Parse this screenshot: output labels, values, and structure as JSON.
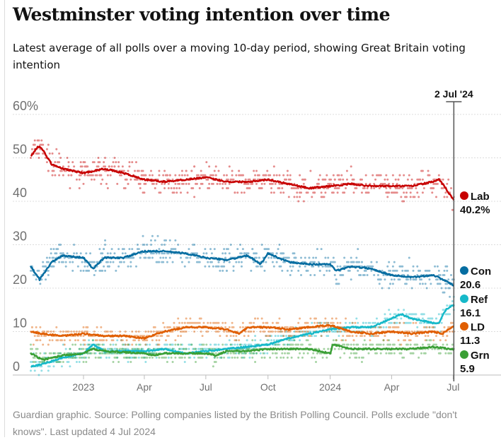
{
  "title": "Westminster voting intention over time",
  "subtitle": "Latest average of all polls over a moving 10-day period, showing Great Britain voting intention",
  "footer": "Guardian graphic. Source: Polling companies listed by the British Polling Council. Polls exclude \"don't knows\". Last updated 4 Jul 2024",
  "chart_data": {
    "type": "line",
    "ylim": [
      0,
      60
    ],
    "yticks": [
      {
        "v": 60,
        "label": "60%"
      },
      {
        "v": 50,
        "label": "50"
      },
      {
        "v": 40,
        "label": "40"
      },
      {
        "v": 30,
        "label": "30"
      },
      {
        "v": 20,
        "label": "20"
      },
      {
        "v": 10,
        "label": "10"
      },
      {
        "v": 0,
        "label": "0"
      }
    ],
    "xlim": [
      "2022-10-14",
      "2024-07-20"
    ],
    "xticks": [
      {
        "d": "2023-01-01",
        "label": "2023"
      },
      {
        "d": "2023-04-01",
        "label": "Apr"
      },
      {
        "d": "2023-07-01",
        "label": "Jul"
      },
      {
        "d": "2023-10-01",
        "label": "Oct"
      },
      {
        "d": "2024-01-01",
        "label": "2024"
      },
      {
        "d": "2024-04-01",
        "label": "Apr"
      },
      {
        "d": "2024-07-01",
        "label": "Jul"
      }
    ],
    "marker": {
      "date": "2024-07-02",
      "label": "2 Jul '24"
    },
    "grid": true,
    "series": [
      {
        "name": "Lab",
        "value_label": "40.2%",
        "color": "#c70000",
        "points": [
          [
            "2022-10-15",
            50.4
          ],
          [
            "2022-10-26",
            52.7
          ],
          [
            "2022-11-01",
            52
          ],
          [
            "2022-11-15",
            48.5
          ],
          [
            "2022-12-01",
            47.5
          ],
          [
            "2023-01-01",
            46.5
          ],
          [
            "2023-02-01",
            47.5
          ],
          [
            "2023-03-01",
            46.5
          ],
          [
            "2023-04-01",
            45
          ],
          [
            "2023-05-01",
            44.5
          ],
          [
            "2023-06-01",
            45
          ],
          [
            "2023-07-01",
            45.5
          ],
          [
            "2023-08-01",
            44.5
          ],
          [
            "2023-09-01",
            44.5
          ],
          [
            "2023-10-01",
            45
          ],
          [
            "2023-11-01",
            44
          ],
          [
            "2023-12-01",
            43
          ],
          [
            "2024-01-01",
            43.5
          ],
          [
            "2024-02-01",
            44
          ],
          [
            "2024-03-01",
            43.5
          ],
          [
            "2024-04-01",
            43.5
          ],
          [
            "2024-05-01",
            43.5
          ],
          [
            "2024-06-01",
            44.5
          ],
          [
            "2024-06-10",
            45
          ],
          [
            "2024-06-20",
            43
          ],
          [
            "2024-07-02",
            40.2
          ]
        ]
      },
      {
        "name": "Con",
        "value_label": "20.6",
        "color": "#056da1",
        "points": [
          [
            "2022-10-15",
            25
          ],
          [
            "2022-10-28",
            22
          ],
          [
            "2022-11-15",
            26
          ],
          [
            "2022-12-01",
            27.5
          ],
          [
            "2023-01-01",
            27
          ],
          [
            "2023-01-15",
            24.5
          ],
          [
            "2023-02-01",
            27
          ],
          [
            "2023-03-01",
            27
          ],
          [
            "2023-04-01",
            28.5
          ],
          [
            "2023-05-01",
            28.5
          ],
          [
            "2023-06-01",
            28
          ],
          [
            "2023-07-01",
            27
          ],
          [
            "2023-08-01",
            26.5
          ],
          [
            "2023-09-01",
            27.5
          ],
          [
            "2023-09-20",
            25.5
          ],
          [
            "2023-10-01",
            28
          ],
          [
            "2023-11-01",
            26
          ],
          [
            "2023-12-01",
            25.5
          ],
          [
            "2024-01-01",
            25.5
          ],
          [
            "2024-01-10",
            24
          ],
          [
            "2024-02-01",
            25
          ],
          [
            "2024-03-01",
            24.5
          ],
          [
            "2024-04-01",
            23
          ],
          [
            "2024-05-01",
            22.5
          ],
          [
            "2024-06-01",
            23
          ],
          [
            "2024-06-10",
            22.5
          ],
          [
            "2024-07-02",
            20.6
          ]
        ]
      },
      {
        "name": "Ref",
        "value_label": "16.1",
        "color": "#16b9c9",
        "points": [
          [
            "2022-10-15",
            2
          ],
          [
            "2022-11-01",
            2.5
          ],
          [
            "2022-12-01",
            4
          ],
          [
            "2023-01-01",
            5
          ],
          [
            "2023-01-15",
            7
          ],
          [
            "2023-02-01",
            5.5
          ],
          [
            "2023-04-01",
            5.5
          ],
          [
            "2023-05-01",
            6
          ],
          [
            "2023-06-01",
            5
          ],
          [
            "2023-07-01",
            5.5
          ],
          [
            "2023-08-01",
            6
          ],
          [
            "2023-09-01",
            6.5
          ],
          [
            "2023-10-01",
            7
          ],
          [
            "2023-11-01",
            8.5
          ],
          [
            "2023-12-01",
            9.5
          ],
          [
            "2024-01-01",
            10.5
          ],
          [
            "2024-02-01",
            11
          ],
          [
            "2024-03-01",
            11
          ],
          [
            "2024-04-01",
            13
          ],
          [
            "2024-04-15",
            14
          ],
          [
            "2024-05-01",
            13
          ],
          [
            "2024-06-01",
            12
          ],
          [
            "2024-06-10",
            12
          ],
          [
            "2024-06-20",
            15
          ],
          [
            "2024-07-02",
            16.1
          ]
        ]
      },
      {
        "name": "LD",
        "value_label": "11.3",
        "color": "#e05e00",
        "points": [
          [
            "2022-10-15",
            10
          ],
          [
            "2022-11-01",
            9.5
          ],
          [
            "2022-12-01",
            9
          ],
          [
            "2023-01-01",
            9.5
          ],
          [
            "2023-02-01",
            9
          ],
          [
            "2023-03-01",
            9
          ],
          [
            "2023-04-01",
            8.5
          ],
          [
            "2023-05-01",
            10
          ],
          [
            "2023-06-01",
            11
          ],
          [
            "2023-07-01",
            11
          ],
          [
            "2023-08-01",
            10.5
          ],
          [
            "2023-08-20",
            9.5
          ],
          [
            "2023-09-01",
            11
          ],
          [
            "2023-10-01",
            11
          ],
          [
            "2023-11-01",
            10.5
          ],
          [
            "2023-12-01",
            11
          ],
          [
            "2024-01-01",
            11.5
          ],
          [
            "2024-02-01",
            10
          ],
          [
            "2024-03-01",
            9.5
          ],
          [
            "2024-04-01",
            10
          ],
          [
            "2024-05-01",
            9.5
          ],
          [
            "2024-06-01",
            10
          ],
          [
            "2024-06-15",
            9.5
          ],
          [
            "2024-07-02",
            11.3
          ]
        ]
      },
      {
        "name": "Grn",
        "value_label": "5.9",
        "color": "#3a9f35",
        "points": [
          [
            "2022-10-15",
            5
          ],
          [
            "2022-11-01",
            3.5
          ],
          [
            "2022-12-01",
            4.5
          ],
          [
            "2023-01-01",
            5
          ],
          [
            "2023-01-15",
            6
          ],
          [
            "2023-02-01",
            5.5
          ],
          [
            "2023-04-01",
            5
          ],
          [
            "2023-04-15",
            4.5
          ],
          [
            "2023-05-01",
            5
          ],
          [
            "2023-07-01",
            5
          ],
          [
            "2023-07-15",
            4.5
          ],
          [
            "2023-08-01",
            5.5
          ],
          [
            "2023-09-01",
            5.5
          ],
          [
            "2023-10-01",
            6
          ],
          [
            "2023-11-01",
            6
          ],
          [
            "2023-12-01",
            6
          ],
          [
            "2024-01-01",
            5
          ],
          [
            "2024-01-05",
            7
          ],
          [
            "2024-02-01",
            6
          ],
          [
            "2024-04-01",
            6
          ],
          [
            "2024-05-01",
            6
          ],
          [
            "2024-06-01",
            6.5
          ],
          [
            "2024-07-02",
            5.9
          ]
        ]
      }
    ]
  }
}
